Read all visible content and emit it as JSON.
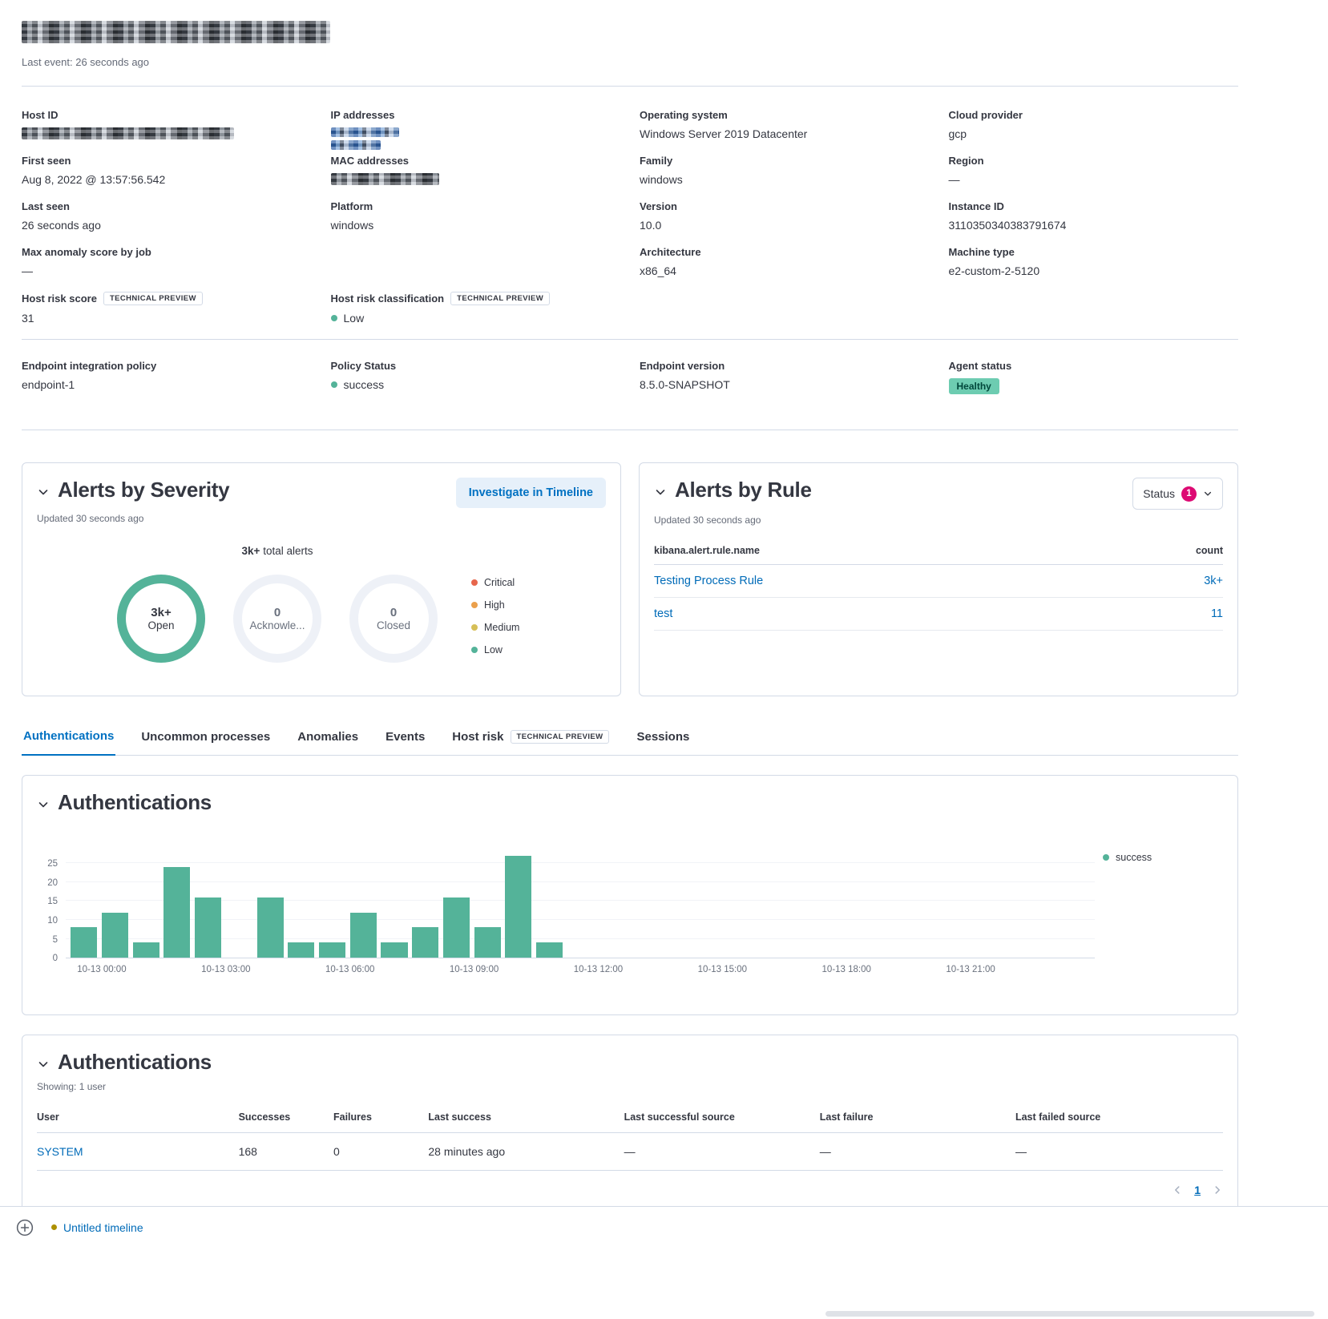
{
  "header": {
    "last_event": "Last event: 26 seconds ago"
  },
  "overview": {
    "col1": {
      "host_id_label": "Host ID",
      "first_seen_label": "First seen",
      "first_seen_value": "Aug 8, 2022 @ 13:57:56.542",
      "last_seen_label": "Last seen",
      "last_seen_value": "26 seconds ago",
      "max_anomaly_label": "Max anomaly score by job",
      "max_anomaly_value": "—",
      "risk_score_label": "Host risk score",
      "risk_score_badge": "TECHNICAL PREVIEW",
      "risk_score_value": "31"
    },
    "col2": {
      "ip_label": "IP addresses",
      "mac_label": "MAC addresses",
      "platform_label": "Platform",
      "platform_value": "windows",
      "risk_class_label": "Host risk classification",
      "risk_class_badge": "TECHNICAL PREVIEW",
      "risk_class_value": "Low"
    },
    "col3": {
      "os_label": "Operating system",
      "os_value": "Windows Server 2019 Datacenter",
      "family_label": "Family",
      "family_value": "windows",
      "version_label": "Version",
      "version_value": "10.0",
      "arch_label": "Architecture",
      "arch_value": "x86_64"
    },
    "col4": {
      "cloud_label": "Cloud provider",
      "cloud_value": "gcp",
      "region_label": "Region",
      "region_value": "—",
      "instance_label": "Instance ID",
      "instance_value": "3110350340383791674",
      "machine_label": "Machine type",
      "machine_value": "e2-custom-2-5120"
    }
  },
  "endpoint": {
    "policy_label": "Endpoint integration policy",
    "policy_value": "endpoint-1",
    "status_label": "Policy Status",
    "status_value": "success",
    "version_label": "Endpoint version",
    "version_value": "8.5.0-SNAPSHOT",
    "agent_label": "Agent status",
    "agent_value": "Healthy"
  },
  "alerts_severity": {
    "title": "Alerts by Severity",
    "investigate_button": "Investigate in Timeline",
    "updated": "Updated 30 seconds ago",
    "total_value": "3k+",
    "total_suffix": "total alerts",
    "donuts": [
      {
        "value": "3k+",
        "label": "Open"
      },
      {
        "value": "0",
        "label": "Acknowle..."
      },
      {
        "value": "0",
        "label": "Closed"
      }
    ],
    "legend": [
      {
        "label": "Critical",
        "color": "#e7664c"
      },
      {
        "label": "High",
        "color": "#eba04c"
      },
      {
        "label": "Medium",
        "color": "#d6bf57"
      },
      {
        "label": "Low",
        "color": "#54b399"
      }
    ]
  },
  "alerts_rule": {
    "title": "Alerts by Rule",
    "updated": "Updated 30 seconds ago",
    "status_filter_label": "Status",
    "status_filter_count": "1",
    "status_badge_color": "#dd0a73",
    "columns": {
      "name": "kibana.alert.rule.name",
      "count": "count"
    },
    "rows": [
      {
        "name": "Testing Process Rule",
        "count": "3k+"
      },
      {
        "name": "test",
        "count": "11"
      }
    ]
  },
  "tabs": [
    {
      "label": "Authentications",
      "active": true
    },
    {
      "label": "Uncommon processes",
      "active": false
    },
    {
      "label": "Anomalies",
      "active": false
    },
    {
      "label": "Events",
      "active": false
    },
    {
      "label": "Host risk",
      "active": false,
      "badge": "TECHNICAL PREVIEW"
    },
    {
      "label": "Sessions",
      "active": false
    }
  ],
  "auth_chart": {
    "title": "Authentications",
    "legend_label": "success",
    "legend_color": "#54b399"
  },
  "auth_table": {
    "title": "Authentications",
    "showing": "Showing: 1 user",
    "headers": [
      "User",
      "Successes",
      "Failures",
      "Last success",
      "Last successful source",
      "Last failure",
      "Last failed source"
    ],
    "rows": [
      [
        "SYSTEM",
        "168",
        "0",
        "28 minutes ago",
        "—",
        "—",
        "—"
      ]
    ],
    "page_number": "1"
  },
  "timeline_bar": {
    "label": "Untitled timeline"
  },
  "chart_data": {
    "type": "bar",
    "title": "Authentications",
    "series_name": "success",
    "bar_color": "#54b399",
    "x_domain_hours": [
      -0.87,
      24
    ],
    "x_tick_hours": [
      0,
      3,
      6,
      9,
      12,
      15,
      18,
      21
    ],
    "x_ticks": [
      "10-13 00:00",
      "10-13 03:00",
      "10-13 06:00",
      "10-13 09:00",
      "10-13 12:00",
      "10-13 15:00",
      "10-13 18:00",
      "10-13 21:00"
    ],
    "y_ticks": [
      0,
      5,
      10,
      15,
      20,
      25
    ],
    "ylim": [
      0,
      28.5
    ],
    "bar_width_hours": 0.68,
    "points": [
      {
        "time": "10-12 23:15",
        "x_hour": -0.75,
        "value": 8
      },
      {
        "time": "10-13 00:00",
        "x_hour": 0,
        "value": 12
      },
      {
        "time": "10-13 00:45",
        "x_hour": 0.75,
        "value": 4
      },
      {
        "time": "10-13 01:30",
        "x_hour": 1.5,
        "value": 24
      },
      {
        "time": "10-13 02:15",
        "x_hour": 2.25,
        "value": 16
      },
      {
        "time": "10-13 03:45",
        "x_hour": 3.75,
        "value": 16
      },
      {
        "time": "10-13 04:30",
        "x_hour": 4.5,
        "value": 4
      },
      {
        "time": "10-13 05:15",
        "x_hour": 5.25,
        "value": 4
      },
      {
        "time": "10-13 06:00",
        "x_hour": 6,
        "value": 12
      },
      {
        "time": "10-13 06:45",
        "x_hour": 6.75,
        "value": 4
      },
      {
        "time": "10-13 07:30",
        "x_hour": 7.5,
        "value": 8
      },
      {
        "time": "10-13 08:15",
        "x_hour": 8.25,
        "value": 16
      },
      {
        "time": "10-13 09:00",
        "x_hour": 9,
        "value": 8
      },
      {
        "time": "10-13 09:45",
        "x_hour": 9.75,
        "value": 27
      },
      {
        "time": "10-13 10:30",
        "x_hour": 10.5,
        "value": 4
      }
    ]
  },
  "colors": {
    "link": "#006bb8",
    "accent_green": "#54b399",
    "healthy_badge_bg": "#6dccb1",
    "status_count_badge": "#dd0a73",
    "active_tab": "#0071c2"
  }
}
